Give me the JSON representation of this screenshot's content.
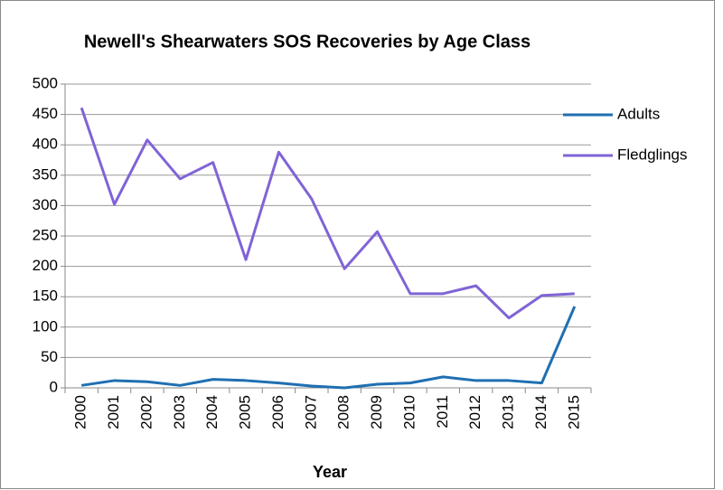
{
  "chart_data": {
    "type": "line",
    "title": "Newell's Shearwaters SOS Recoveries by Age Class",
    "x_label": "Year",
    "categories": [
      "2000",
      "2001",
      "2002",
      "2003",
      "2004",
      "2005",
      "2006",
      "2007",
      "2008",
      "2009",
      "2010",
      "2011",
      "2012",
      "2013",
      "2014",
      "2015"
    ],
    "series": [
      {
        "name": "Adults",
        "color": "#1f6fb2",
        "values": [
          4,
          12,
          10,
          4,
          14,
          12,
          8,
          3,
          0,
          6,
          8,
          18,
          12,
          12,
          8,
          134
        ]
      },
      {
        "name": "Fledglings",
        "color": "#8064d6",
        "values": [
          461,
          302,
          408,
          344,
          371,
          211,
          388,
          311,
          196,
          257,
          155,
          155,
          168,
          115,
          152,
          155
        ]
      }
    ],
    "ylim": [
      0,
      500
    ],
    "yticks": [
      0,
      50,
      100,
      150,
      200,
      250,
      300,
      350,
      400,
      450,
      500
    ],
    "grid": true,
    "legend": "right"
  }
}
